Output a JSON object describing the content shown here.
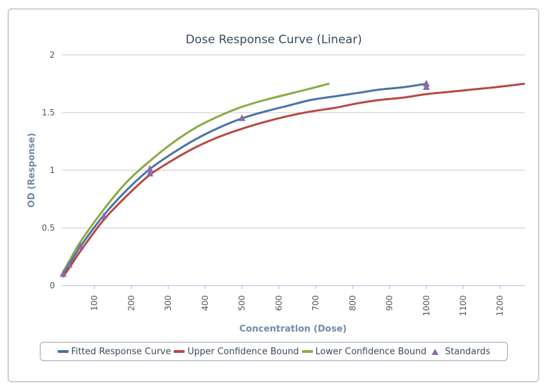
{
  "chart_data": {
    "type": "line",
    "title": "Dose Response Curve (Linear)",
    "xlabel": "Concentration (Dose)",
    "ylabel": "OD (Response)",
    "xlim": [
      0,
      1265
    ],
    "ylim": [
      0,
      2
    ],
    "x_ticks": [
      "100",
      "200",
      "300",
      "400",
      "500",
      "600",
      "700",
      "800",
      "900",
      "1000",
      "1100",
      "1200"
    ],
    "y_ticks": [
      "0",
      "0.5",
      "1",
      "1.5",
      "2"
    ],
    "grid": "horizontal",
    "legend_position": "bottom",
    "series": [
      {
        "name": "Fitted Response Curve",
        "color": "#4a72a8",
        "x": [
          15,
          31,
          62,
          125,
          188,
          250,
          313,
          375,
          438,
          500,
          563,
          625,
          688,
          750,
          813,
          875,
          938,
          1000
        ],
        "y": [
          0.1,
          0.18,
          0.34,
          0.61,
          0.83,
          1.01,
          1.15,
          1.27,
          1.37,
          1.45,
          1.51,
          1.56,
          1.61,
          1.64,
          1.67,
          1.7,
          1.72,
          1.75
        ]
      },
      {
        "name": "Upper Confidence Bound",
        "color": "#b84744",
        "x": [
          15,
          31,
          62,
          125,
          188,
          250,
          313,
          375,
          438,
          500,
          563,
          625,
          688,
          750,
          813,
          875,
          938,
          1000,
          1063,
          1125,
          1188,
          1265
        ],
        "y": [
          0.08,
          0.15,
          0.3,
          0.57,
          0.78,
          0.96,
          1.09,
          1.2,
          1.29,
          1.36,
          1.42,
          1.47,
          1.51,
          1.54,
          1.58,
          1.61,
          1.63,
          1.66,
          1.68,
          1.7,
          1.72,
          1.75
        ]
      },
      {
        "name": "Lower Confidence Bound",
        "color": "#8aaa45",
        "x": [
          15,
          31,
          62,
          125,
          188,
          250,
          313,
          375,
          438,
          500,
          563,
          625,
          688,
          735
        ],
        "y": [
          0.12,
          0.21,
          0.38,
          0.66,
          0.9,
          1.08,
          1.24,
          1.37,
          1.47,
          1.55,
          1.61,
          1.66,
          1.71,
          1.75
        ]
      },
      {
        "name": "Standards",
        "color": "#8b6aa8",
        "marker": "triangle",
        "x": [
          15,
          31,
          62,
          125,
          250,
          250,
          500,
          1000,
          1000
        ],
        "y": [
          0.1,
          0.18,
          0.34,
          0.6,
          1.01,
          0.97,
          1.45,
          1.75,
          1.72
        ]
      }
    ]
  }
}
